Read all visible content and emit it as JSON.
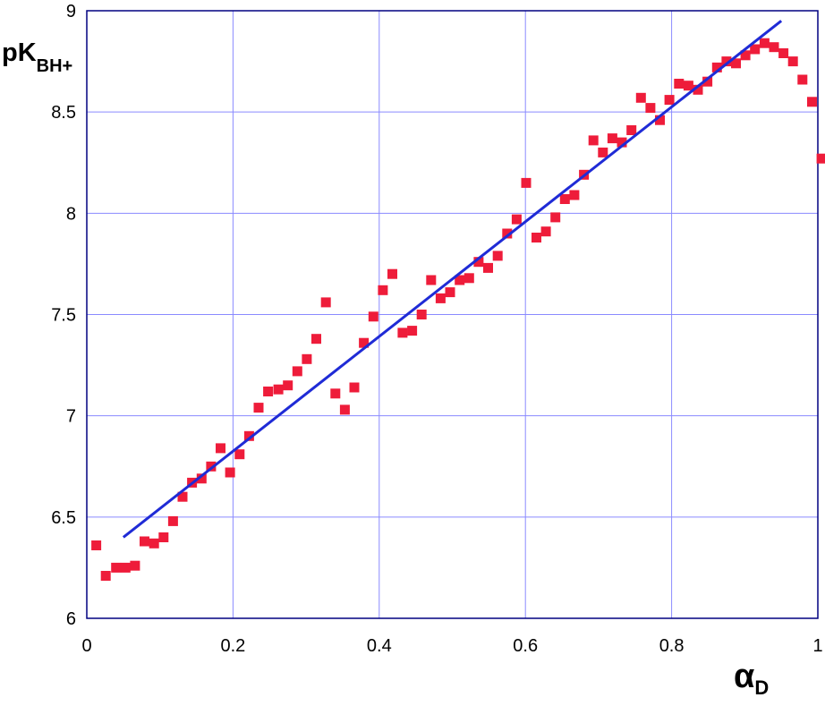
{
  "chart_data": {
    "type": "scatter",
    "ylabel": {
      "main": "pK",
      "sub": "BH+"
    },
    "xlabel": {
      "main": "α",
      "sub": "D"
    },
    "xlim": [
      0,
      1
    ],
    "ylim": [
      6,
      9
    ],
    "x_ticks": [
      {
        "value": 0,
        "label": "0"
      },
      {
        "value": 0.2,
        "label": "0.2"
      },
      {
        "value": 0.4,
        "label": "0.4"
      },
      {
        "value": 0.6,
        "label": "0.6"
      },
      {
        "value": 0.8,
        "label": "0.8"
      },
      {
        "value": 1,
        "label": "1"
      }
    ],
    "y_ticks": [
      {
        "value": 6,
        "label": "6"
      },
      {
        "value": 6.5,
        "label": "6.5"
      },
      {
        "value": 7,
        "label": "7"
      },
      {
        "value": 7.5,
        "label": "7.5"
      },
      {
        "value": 8,
        "label": "8"
      },
      {
        "value": 8.5,
        "label": "8.5"
      },
      {
        "value": 9,
        "label": "9"
      }
    ],
    "grid": true,
    "series": [
      {
        "marker": "square",
        "color": "#ee1c3a",
        "points": [
          [
            0.013,
            6.36
          ],
          [
            0.026,
            6.21
          ],
          [
            0.04,
            6.25
          ],
          [
            0.053,
            6.25
          ],
          [
            0.066,
            6.26
          ],
          [
            0.079,
            6.38
          ],
          [
            0.092,
            6.37
          ],
          [
            0.105,
            6.4
          ],
          [
            0.118,
            6.48
          ],
          [
            0.131,
            6.6
          ],
          [
            0.144,
            6.67
          ],
          [
            0.157,
            6.69
          ],
          [
            0.17,
            6.75
          ],
          [
            0.183,
            6.84
          ],
          [
            0.196,
            6.72
          ],
          [
            0.209,
            6.81
          ],
          [
            0.222,
            6.9
          ],
          [
            0.235,
            7.04
          ],
          [
            0.248,
            7.12
          ],
          [
            0.262,
            7.13
          ],
          [
            0.275,
            7.15
          ],
          [
            0.288,
            7.22
          ],
          [
            0.301,
            7.28
          ],
          [
            0.314,
            7.38
          ],
          [
            0.327,
            7.56
          ],
          [
            0.34,
            7.11
          ],
          [
            0.353,
            7.03
          ],
          [
            0.366,
            7.14
          ],
          [
            0.379,
            7.36
          ],
          [
            0.392,
            7.49
          ],
          [
            0.405,
            7.62
          ],
          [
            0.418,
            7.7
          ],
          [
            0.432,
            7.41
          ],
          [
            0.445,
            7.42
          ],
          [
            0.458,
            7.5
          ],
          [
            0.471,
            7.67
          ],
          [
            0.484,
            7.58
          ],
          [
            0.497,
            7.61
          ],
          [
            0.51,
            7.67
          ],
          [
            0.523,
            7.68
          ],
          [
            0.536,
            7.76
          ],
          [
            0.549,
            7.73
          ],
          [
            0.562,
            7.79
          ],
          [
            0.575,
            7.9
          ],
          [
            0.588,
            7.97
          ],
          [
            0.601,
            8.15
          ],
          [
            0.615,
            7.88
          ],
          [
            0.628,
            7.91
          ],
          [
            0.641,
            7.98
          ],
          [
            0.654,
            8.07
          ],
          [
            0.667,
            8.09
          ],
          [
            0.68,
            8.19
          ],
          [
            0.693,
            8.36
          ],
          [
            0.706,
            8.3
          ],
          [
            0.719,
            8.37
          ],
          [
            0.732,
            8.35
          ],
          [
            0.745,
            8.41
          ],
          [
            0.758,
            8.57
          ],
          [
            0.771,
            8.52
          ],
          [
            0.784,
            8.46
          ],
          [
            0.797,
            8.56
          ],
          [
            0.81,
            8.64
          ],
          [
            0.823,
            8.63
          ],
          [
            0.836,
            8.61
          ],
          [
            0.849,
            8.65
          ],
          [
            0.862,
            8.72
          ],
          [
            0.875,
            8.75
          ],
          [
            0.888,
            8.74
          ],
          [
            0.901,
            8.78
          ],
          [
            0.914,
            8.81
          ],
          [
            0.927,
            8.84
          ],
          [
            0.94,
            8.82
          ],
          [
            0.953,
            8.79
          ],
          [
            0.966,
            8.75
          ],
          [
            0.979,
            8.66
          ],
          [
            0.992,
            8.55
          ],
          [
            1.005,
            8.27
          ]
        ]
      }
    ],
    "fit_line": {
      "color": "#1f2bd6",
      "x": [
        0.05,
        0.95
      ],
      "y": [
        6.4,
        8.95
      ]
    }
  }
}
